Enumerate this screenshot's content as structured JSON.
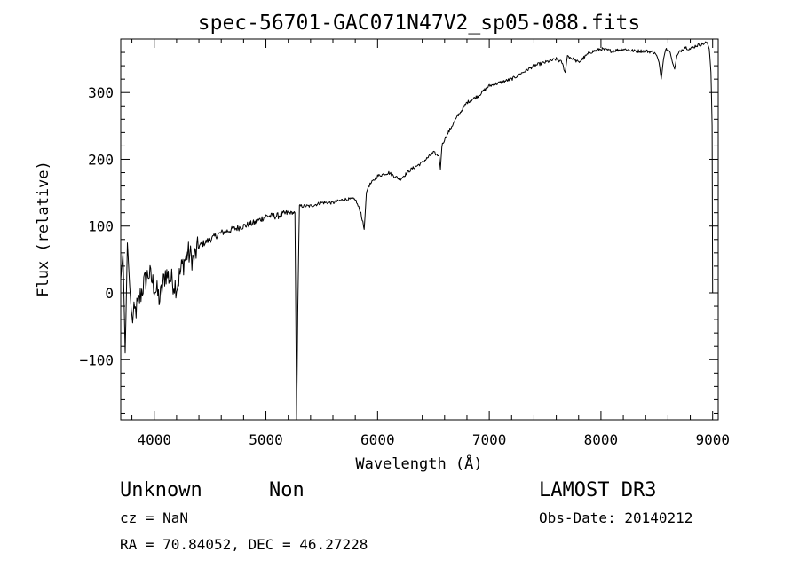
{
  "chart_data": {
    "type": "line",
    "title": "spec-56701-GAC071N47V2_sp05-088.fits",
    "xlabel": "Wavelength (Å)",
    "ylabel": "Flux (relative)",
    "xlim": [
      3700,
      9050
    ],
    "ylim": [
      -190,
      380
    ],
    "x_ticks": [
      4000,
      5000,
      6000,
      7000,
      8000,
      9000
    ],
    "y_ticks": [
      -100,
      0,
      100,
      200,
      300
    ],
    "x_tick_labels": [
      "4000",
      "5000",
      "6000",
      "7000",
      "8000",
      "9000"
    ],
    "y_tick_labels": [
      "−100",
      "0",
      "100",
      "200",
      "300"
    ],
    "grid": false,
    "legend": "none",
    "series": [
      {
        "color": "#000000",
        "x": [
          3700,
          3720,
          3740,
          3760,
          3780,
          3800,
          3850,
          3900,
          3950,
          4000,
          4050,
          4100,
          4150,
          4200,
          4250,
          4300,
          4350,
          4400,
          4500,
          4600,
          4700,
          4800,
          4900,
          5000,
          5100,
          5200,
          5260,
          5275,
          5285,
          5300,
          5400,
          5500,
          5600,
          5700,
          5800,
          5850,
          5880,
          5900,
          5920,
          6000,
          6100,
          6200,
          6300,
          6400,
          6500,
          6550,
          6563,
          6575,
          6600,
          6700,
          6800,
          6900,
          7000,
          7100,
          7200,
          7300,
          7400,
          7500,
          7600,
          7650,
          7680,
          7700,
          7800,
          7900,
          8000,
          8100,
          8200,
          8300,
          8400,
          8480,
          8500,
          8520,
          8540,
          8560,
          8580,
          8620,
          8640,
          8660,
          8680,
          8700,
          8750,
          8800,
          8850,
          8900,
          8950,
          8970,
          8985,
          8995,
          9000
        ],
        "y": [
          20,
          60,
          -90,
          75,
          10,
          -40,
          -20,
          10,
          30,
          10,
          -10,
          30,
          20,
          10,
          40,
          60,
          50,
          70,
          80,
          90,
          95,
          100,
          105,
          115,
          115,
          120,
          120,
          -190,
          -30,
          130,
          130,
          135,
          135,
          140,
          140,
          120,
          95,
          150,
          160,
          175,
          180,
          170,
          185,
          195,
          210,
          205,
          185,
          220,
          230,
          260,
          285,
          295,
          310,
          315,
          320,
          330,
          340,
          345,
          350,
          345,
          330,
          355,
          345,
          360,
          365,
          362,
          365,
          362,
          362,
          360,
          355,
          345,
          320,
          350,
          365,
          360,
          345,
          335,
          355,
          360,
          368,
          365,
          370,
          372,
          375,
          365,
          330,
          250,
          0
        ]
      }
    ]
  },
  "annotations": {
    "object_class": "Unknown",
    "object_subclass": "Non",
    "survey": "LAMOST DR3",
    "redshift": "cz = NaN",
    "obs_date": "Obs-Date: 20140212",
    "coords": "RA =  70.84052, DEC =  46.27228"
  }
}
